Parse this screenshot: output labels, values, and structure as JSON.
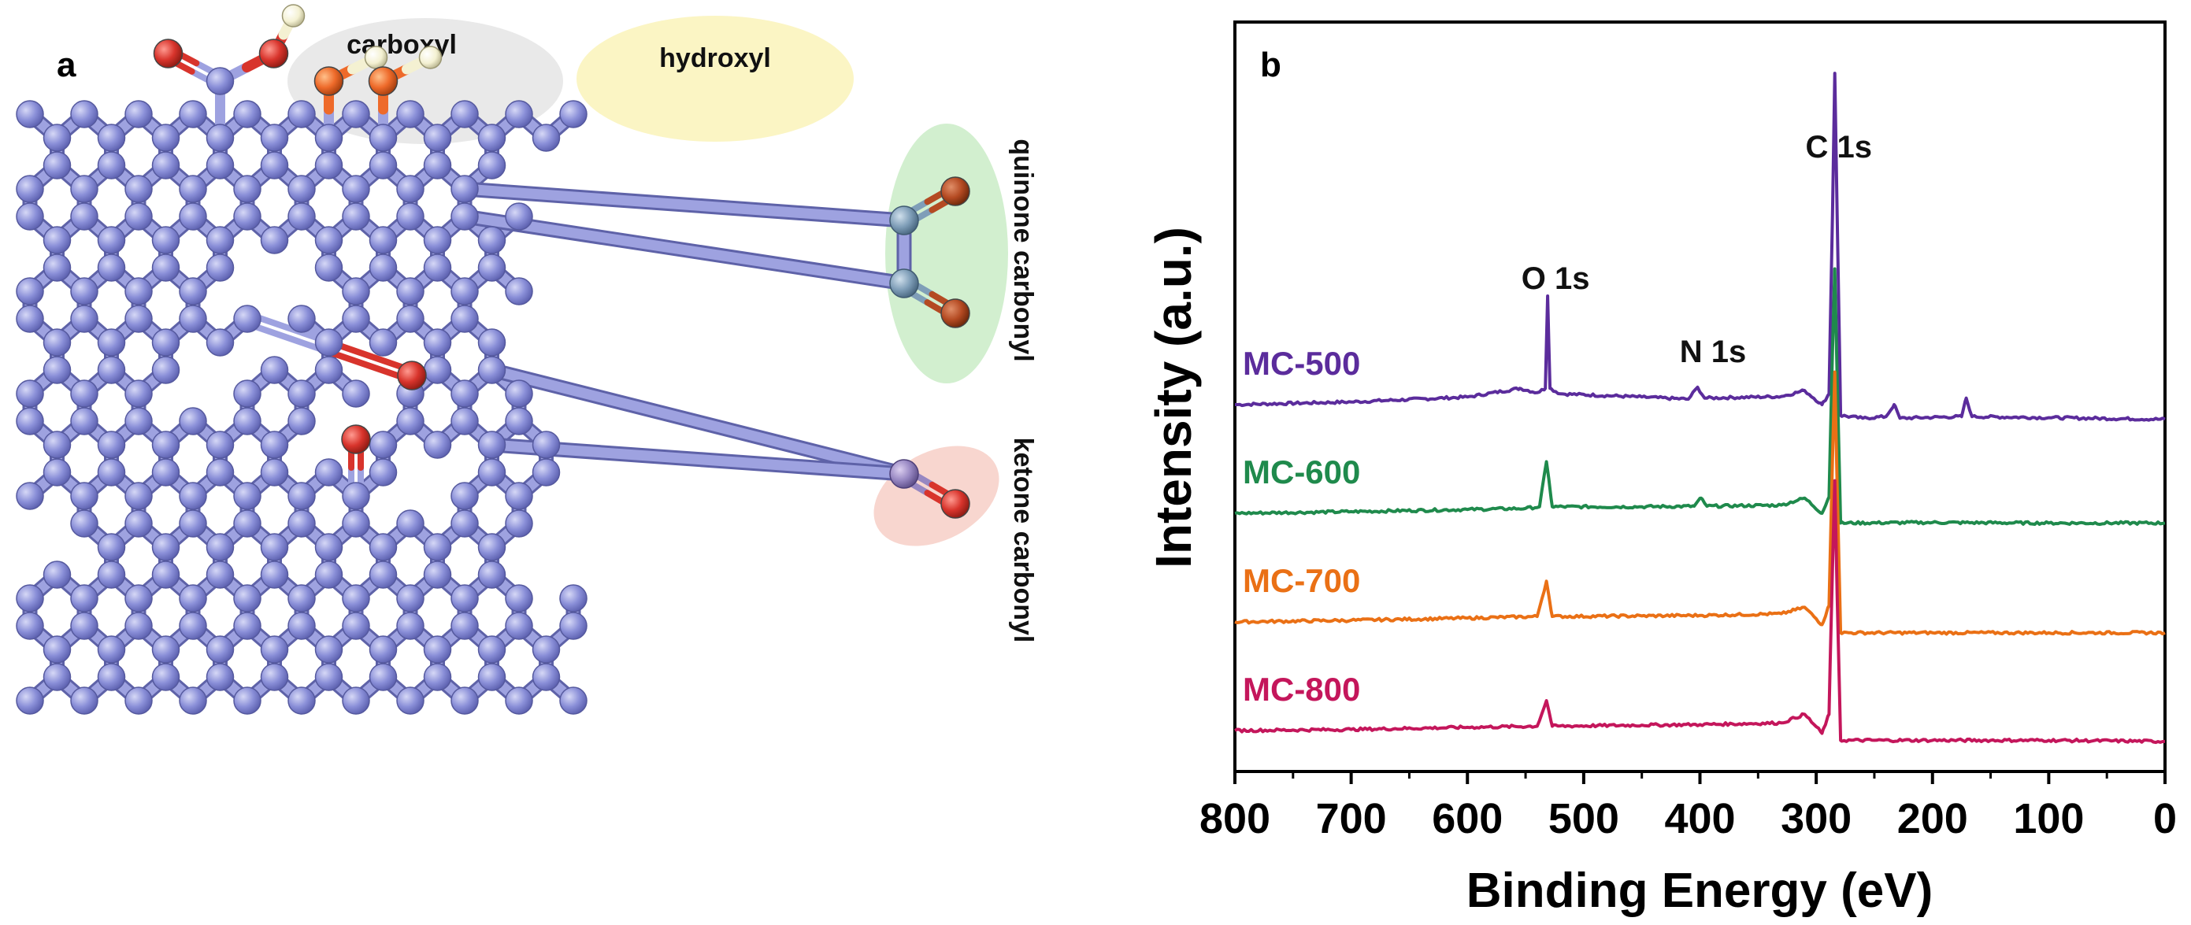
{
  "panel_a": {
    "label": "a",
    "groups": {
      "carboxyl": "carboxyl",
      "hydroxyl": "hydroxyl",
      "quinone": "quinone carbonyl",
      "ketone": "ketone carbonyl"
    },
    "colors": {
      "carbon": "#8a8fd8",
      "bond": "#9ea2e0",
      "oxygen": "#d8342c",
      "hydroxyl_oxygen": "#ee6a2a",
      "hydrogen": "#f4f1d2",
      "quinone_carbon": "#7f9eb8",
      "ketone_carbon": "#9787c2",
      "carboxyl_bg": "#e9e9e9",
      "hydroxyl_bg": "#fbf5c4",
      "quinone_bg": "#d2efcf",
      "ketone_bg": "#f8d6cf"
    }
  },
  "panel_b": {
    "label": "b"
  },
  "chart_data": {
    "type": "line",
    "title": "",
    "xlabel": "Binding Energy (eV)",
    "ylabel": "Intensity (a.u.)",
    "xlim": [
      800,
      0
    ],
    "x_reversed": true,
    "xticks": [
      "800",
      "700",
      "600",
      "500",
      "400",
      "300",
      "200",
      "100",
      "0"
    ],
    "xtick_values": [
      800,
      700,
      600,
      500,
      400,
      300,
      200,
      100,
      0
    ],
    "y_units": "arbitrary, vertically offset series",
    "grid": false,
    "annotations": [
      {
        "text": "O 1s",
        "x": 531
      },
      {
        "text": "N 1s",
        "x": 399
      },
      {
        "text": "C 1s",
        "x": 284
      }
    ],
    "series": [
      {
        "name": "MC-500",
        "color": "#5b2c9c",
        "baseline": 3.0,
        "points": [
          [
            800,
            0.0
          ],
          [
            700,
            0.05
          ],
          [
            600,
            0.14
          ],
          [
            555,
            0.3
          ],
          [
            540,
            0.22
          ],
          [
            533,
            0.3
          ],
          [
            531,
            2.0
          ],
          [
            529,
            0.3
          ],
          [
            520,
            0.2
          ],
          [
            450,
            0.14
          ],
          [
            410,
            0.1
          ],
          [
            402,
            0.32
          ],
          [
            396,
            0.12
          ],
          [
            330,
            0.15
          ],
          [
            310,
            0.26
          ],
          [
            295,
            0.0
          ],
          [
            289,
            0.2
          ],
          [
            286,
            3.5
          ],
          [
            284,
            6.1
          ],
          [
            282,
            3.5
          ],
          [
            279,
            -0.2
          ],
          [
            260,
            -0.25
          ],
          [
            240,
            -0.22
          ],
          [
            233,
            0.0
          ],
          [
            228,
            -0.25
          ],
          [
            175,
            -0.22
          ],
          [
            171,
            0.12
          ],
          [
            166,
            -0.22
          ],
          [
            100,
            -0.24
          ],
          [
            0,
            -0.27
          ]
        ]
      },
      {
        "name": "MC-600",
        "color": "#1f8a4c",
        "baseline": 2.0,
        "points": [
          [
            800,
            0.0
          ],
          [
            700,
            0.03
          ],
          [
            600,
            0.07
          ],
          [
            550,
            0.09
          ],
          [
            538,
            0.12
          ],
          [
            532,
            0.95
          ],
          [
            527,
            0.12
          ],
          [
            450,
            0.12
          ],
          [
            405,
            0.13
          ],
          [
            399,
            0.28
          ],
          [
            394,
            0.13
          ],
          [
            330,
            0.15
          ],
          [
            310,
            0.28
          ],
          [
            295,
            0.0
          ],
          [
            289,
            0.3
          ],
          [
            286,
            3.0
          ],
          [
            284,
            4.5
          ],
          [
            282,
            2.5
          ],
          [
            279,
            -0.18
          ],
          [
            200,
            -0.17
          ],
          [
            100,
            -0.18
          ],
          [
            0,
            -0.18
          ]
        ]
      },
      {
        "name": "MC-700",
        "color": "#ea7015",
        "baseline": 1.0,
        "points": [
          [
            800,
            0.0
          ],
          [
            700,
            0.03
          ],
          [
            600,
            0.07
          ],
          [
            540,
            0.1
          ],
          [
            532,
            0.75
          ],
          [
            527,
            0.1
          ],
          [
            450,
            0.11
          ],
          [
            400,
            0.12
          ],
          [
            330,
            0.15
          ],
          [
            310,
            0.27
          ],
          [
            295,
            -0.05
          ],
          [
            289,
            0.3
          ],
          [
            286,
            3.0
          ],
          [
            284,
            4.6
          ],
          [
            282,
            2.5
          ],
          [
            279,
            -0.2
          ],
          [
            200,
            -0.2
          ],
          [
            100,
            -0.2
          ],
          [
            0,
            -0.2
          ]
        ]
      },
      {
        "name": "MC-800",
        "color": "#c4165b",
        "baseline": 0.0,
        "points": [
          [
            800,
            0.0
          ],
          [
            700,
            0.02
          ],
          [
            600,
            0.06
          ],
          [
            540,
            0.08
          ],
          [
            532,
            0.55
          ],
          [
            527,
            0.08
          ],
          [
            450,
            0.1
          ],
          [
            400,
            0.11
          ],
          [
            330,
            0.14
          ],
          [
            310,
            0.3
          ],
          [
            295,
            -0.05
          ],
          [
            289,
            0.3
          ],
          [
            286,
            3.0
          ],
          [
            284,
            4.6
          ],
          [
            282,
            2.5
          ],
          [
            279,
            -0.18
          ],
          [
            200,
            -0.18
          ],
          [
            100,
            -0.18
          ],
          [
            0,
            -0.2
          ]
        ]
      }
    ]
  }
}
